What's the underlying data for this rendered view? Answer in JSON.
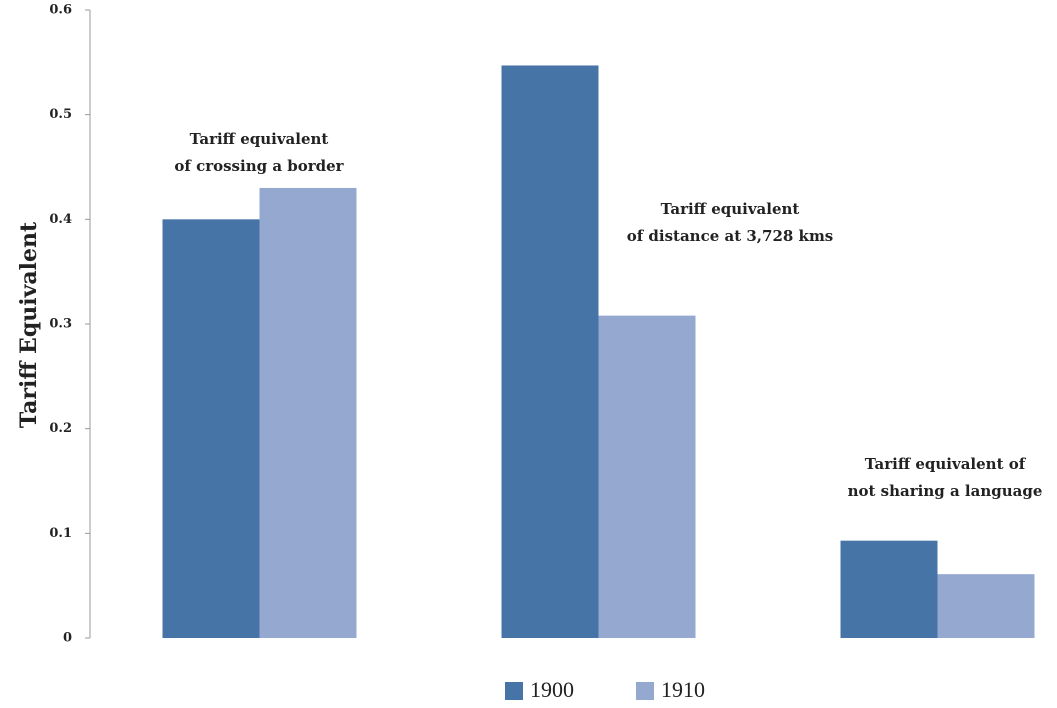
{
  "chart_data": {
    "type": "bar",
    "y_label": "Tariff Equivalent",
    "categories": [
      null,
      null,
      null
    ],
    "annotations": [
      [
        "Tariff equivalent",
        "of crossing a border"
      ],
      [
        "Tariff equivalent",
        "of distance at 3,728 kms"
      ],
      [
        "Tariff equivalent of",
        "not sharing a language"
      ]
    ],
    "series": [
      {
        "name": "1900",
        "color": "#4674a7",
        "values": [
          0.4,
          0.547,
          0.093
        ]
      },
      {
        "name": "1910",
        "color": "#95a9d0",
        "values": [
          0.43,
          0.308,
          0.061
        ]
      }
    ],
    "ylim": [
      0,
      0.6
    ],
    "yticks": [
      0,
      0.1,
      0.2,
      0.3,
      0.4,
      0.5,
      0.6
    ]
  }
}
